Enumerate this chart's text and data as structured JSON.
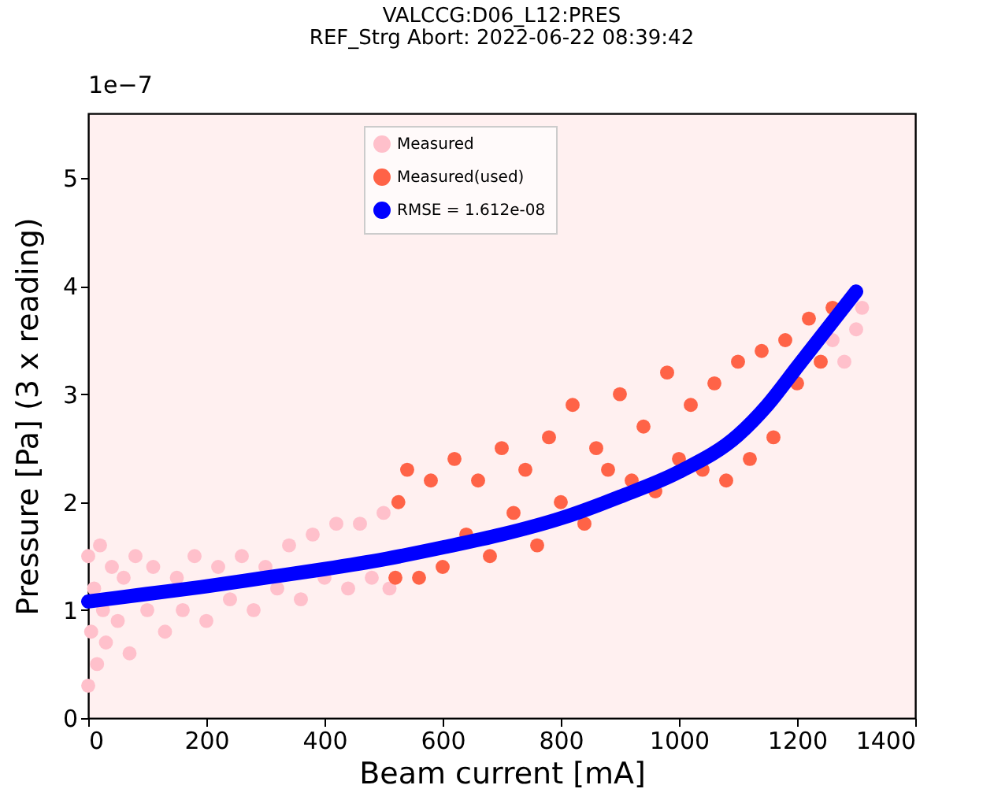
{
  "chart_data": {
    "type": "scatter",
    "title": "VALCCG:D06_L12:PRES",
    "subtitle": "REF_Strg Abort: 2022-06-22 08:39:42",
    "xlabel": "Beam current [mA]",
    "ylabel": "Pressure [Pa] (3 x reading)",
    "annotations": [
      "1e−7"
    ],
    "xlim": [
      0,
      1400
    ],
    "xticks": [
      0,
      200,
      400,
      600,
      800,
      1000,
      1200,
      1400
    ],
    "ylim": [
      0,
      5.6
    ],
    "yticks": [
      0,
      1,
      2,
      3,
      4,
      5
    ],
    "legend": "top",
    "grid": false,
    "series": [
      {
        "name": "Measured",
        "color": "#ffc0cb",
        "x": [
          0,
          0,
          5,
          10,
          15,
          20,
          25,
          30,
          40,
          50,
          60,
          70,
          80,
          100,
          110,
          130,
          150,
          160,
          180,
          200,
          220,
          240,
          260,
          280,
          300,
          320,
          340,
          360,
          380,
          400,
          420,
          440,
          460,
          480,
          500,
          510,
          1260,
          1280,
          1300,
          1310
        ],
        "values": [
          0.3,
          1.5,
          0.8,
          1.2,
          0.5,
          1.6,
          1.0,
          0.7,
          1.4,
          0.9,
          1.3,
          0.6,
          1.5,
          1.0,
          1.4,
          0.8,
          1.3,
          1.0,
          1.5,
          0.9,
          1.4,
          1.1,
          1.5,
          1.0,
          1.4,
          1.2,
          1.6,
          1.1,
          1.7,
          1.3,
          1.8,
          1.2,
          1.8,
          1.3,
          1.9,
          1.2,
          3.5,
          3.3,
          3.6,
          3.8
        ]
      },
      {
        "name": "Measured(used)",
        "color": "#ff6347",
        "x": [
          520,
          525,
          540,
          560,
          580,
          600,
          620,
          640,
          660,
          680,
          700,
          720,
          740,
          760,
          780,
          800,
          820,
          840,
          860,
          880,
          900,
          920,
          940,
          960,
          980,
          1000,
          1020,
          1040,
          1060,
          1080,
          1100,
          1120,
          1140,
          1160,
          1180,
          1200,
          1220,
          1240,
          1260
        ],
        "values": [
          1.3,
          2.0,
          2.3,
          1.3,
          2.2,
          1.4,
          2.4,
          1.7,
          2.2,
          1.5,
          2.5,
          1.9,
          2.3,
          1.6,
          2.6,
          2.0,
          2.9,
          1.8,
          2.5,
          2.3,
          3.0,
          2.2,
          2.7,
          2.1,
          3.2,
          2.4,
          2.9,
          2.3,
          3.1,
          2.2,
          3.3,
          2.4,
          3.4,
          2.6,
          3.5,
          3.1,
          3.7,
          3.3,
          3.8
        ]
      },
      {
        "name": "RMSE = 1.612e-08",
        "type": "line",
        "color": "#0000ff",
        "x": [
          0,
          100,
          200,
          300,
          400,
          500,
          600,
          700,
          800,
          900,
          1000,
          1100,
          1150,
          1200,
          1250,
          1300
        ],
        "values": [
          1.08,
          1.15,
          1.22,
          1.3,
          1.38,
          1.47,
          1.58,
          1.7,
          1.85,
          2.05,
          2.28,
          2.62,
          2.9,
          3.25,
          3.6,
          3.95
        ]
      }
    ]
  }
}
